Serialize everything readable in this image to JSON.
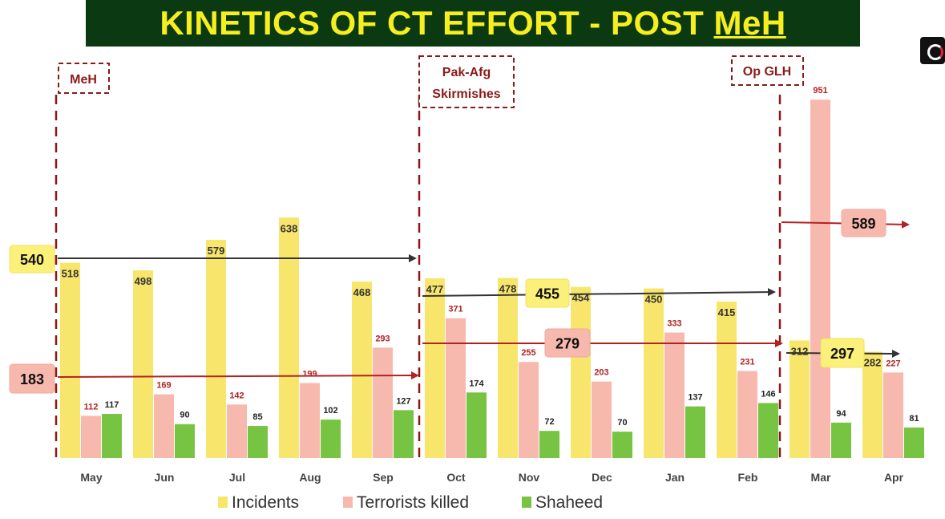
{
  "title": {
    "main": "KINETICS OF CT EFFORT - POST ",
    "underlined": "MeH"
  },
  "chart_data": {
    "type": "bar",
    "categories": [
      "May",
      "Jun",
      "Jul",
      "Aug",
      "Sep",
      "Oct",
      "Nov",
      "Dec",
      "Jan",
      "Feb",
      "Mar",
      "Apr"
    ],
    "series": [
      {
        "name": "Incidents",
        "color": "#f7e66b",
        "values": [
          518,
          498,
          579,
          638,
          468,
          477,
          478,
          454,
          450,
          415,
          312,
          282
        ]
      },
      {
        "name": "Terrorists killed",
        "color": "#f7b8ad",
        "values": [
          112,
          169,
          142,
          199,
          293,
          371,
          255,
          203,
          333,
          231,
          951,
          227
        ]
      },
      {
        "name": "Shaheed",
        "color": "#77c442",
        "values": [
          117,
          90,
          85,
          102,
          127,
          174,
          72,
          70,
          137,
          146,
          94,
          81
        ]
      }
    ],
    "label_colors": {
      "Incidents": "#333333",
      "Terrorists killed": "#b22222",
      "Shaheed": "#222222"
    },
    "ylim": [
      0,
      960
    ],
    "phases": [
      {
        "label": [
          "MeH"
        ]
      },
      {
        "label": [
          "Pak-Afg",
          "Skirmishes"
        ]
      },
      {
        "label": [
          "Op GLH"
        ]
      }
    ],
    "averages": [
      {
        "value": "540",
        "kind": "incidents"
      },
      {
        "value": "183",
        "kind": "killed"
      },
      {
        "value": "455",
        "kind": "incidents"
      },
      {
        "value": "279",
        "kind": "killed"
      },
      {
        "value": "589",
        "kind": "killed"
      },
      {
        "value": "297",
        "kind": "incidents"
      }
    ],
    "legend_placement": "bottom",
    "grid": false
  }
}
